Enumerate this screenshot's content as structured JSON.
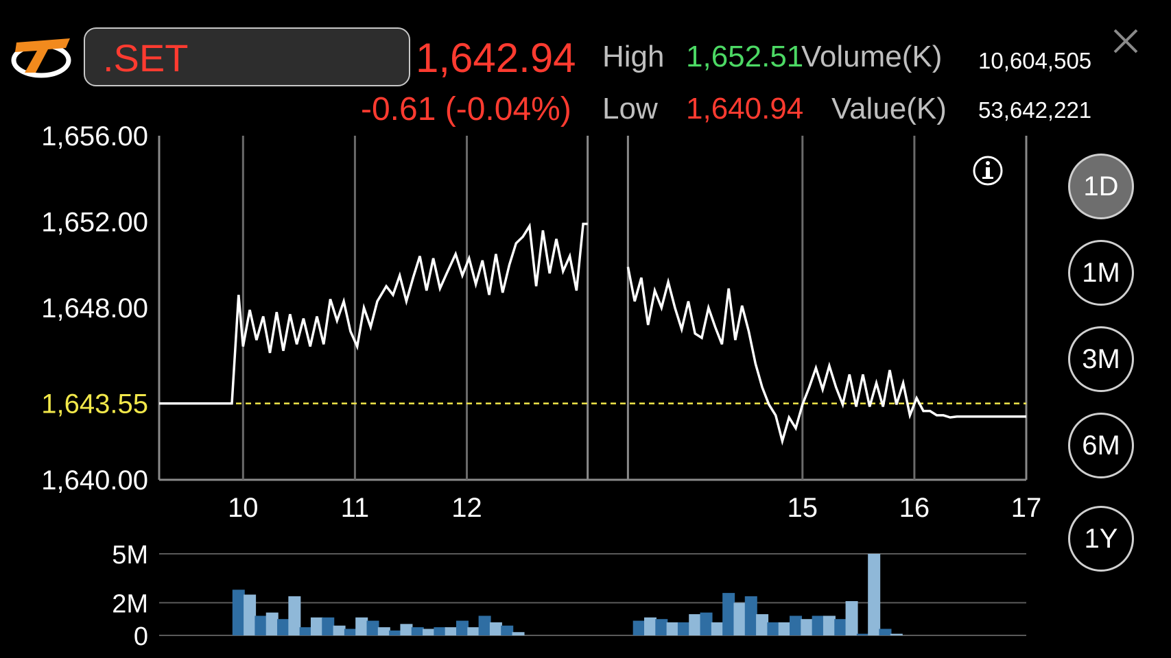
{
  "header": {
    "symbol": ".SET",
    "last_price": "1,642.94",
    "change": "-0.61 (-0.04%)",
    "high_label": "High",
    "high_value": "1,652.51",
    "low_label": "Low",
    "low_value": "1,640.94",
    "volume_label": "Volume(K)",
    "volume_value": "10,604,505",
    "value_label": "Value(K)",
    "value_value": "53,642,221"
  },
  "periods": [
    {
      "label": "1D",
      "active": true
    },
    {
      "label": "1M",
      "active": false
    },
    {
      "label": "3M",
      "active": false
    },
    {
      "label": "6M",
      "active": false
    },
    {
      "label": "1Y",
      "active": false
    }
  ],
  "colors": {
    "price_line": "#ffffff",
    "reference_line": "#f2e84a",
    "volume_bar_dark": "#2f6ea3",
    "volume_bar_light": "#8fb8d8",
    "down": "#ff3b30",
    "up": "#4cd964"
  },
  "icons": {
    "logo": "settrade-logo",
    "close": "close-icon",
    "info": "info-icon"
  },
  "chart_data": {
    "type": "line",
    "y_ticks": [
      "1,656.00",
      "1,652.00",
      "1,648.00",
      "1,640.00"
    ],
    "y_tick_values": [
      1656,
      1652,
      1648,
      1640
    ],
    "ylim": [
      1640,
      1656
    ],
    "reference_label": "1,643.55",
    "reference_value": 1643.55,
    "x_ticks": [
      "10",
      "11",
      "12",
      "15",
      "16",
      "17"
    ],
    "x_tick_values": [
      10,
      11,
      12,
      15,
      16,
      17
    ],
    "xlim": [
      9.25,
      17
    ],
    "morning_session": [
      [
        9.25,
        1643.55
      ],
      [
        9.9,
        1643.55
      ],
      [
        9.96,
        1648.6
      ],
      [
        10.0,
        1646.2
      ],
      [
        10.06,
        1647.9
      ],
      [
        10.12,
        1646.5
      ],
      [
        10.18,
        1647.6
      ],
      [
        10.24,
        1645.9
      ],
      [
        10.3,
        1647.8
      ],
      [
        10.36,
        1646.0
      ],
      [
        10.42,
        1647.7
      ],
      [
        10.48,
        1646.3
      ],
      [
        10.54,
        1647.5
      ],
      [
        10.6,
        1646.2
      ],
      [
        10.66,
        1647.6
      ],
      [
        10.72,
        1646.3
      ],
      [
        10.78,
        1648.4
      ],
      [
        10.84,
        1647.4
      ],
      [
        10.9,
        1648.3
      ],
      [
        10.96,
        1646.9
      ],
      [
        11.02,
        1646.2
      ],
      [
        11.08,
        1648.0
      ],
      [
        11.14,
        1647.1
      ],
      [
        11.2,
        1648.3
      ],
      [
        11.28,
        1649.0
      ],
      [
        11.34,
        1648.6
      ],
      [
        11.4,
        1649.5
      ],
      [
        11.46,
        1648.3
      ],
      [
        11.52,
        1649.4
      ],
      [
        11.58,
        1650.4
      ],
      [
        11.64,
        1648.8
      ],
      [
        11.7,
        1650.3
      ],
      [
        11.76,
        1648.9
      ],
      [
        11.82,
        1649.6
      ],
      [
        11.9,
        1650.5
      ],
      [
        11.96,
        1649.5
      ],
      [
        12.02,
        1650.3
      ],
      [
        12.08,
        1649.1
      ],
      [
        12.14,
        1650.2
      ],
      [
        12.2,
        1648.6
      ],
      [
        12.26,
        1650.5
      ],
      [
        12.32,
        1648.7
      ],
      [
        12.38,
        1650.0
      ],
      [
        12.44,
        1651.0
      ],
      [
        12.5,
        1651.3
      ],
      [
        12.56,
        1651.8
      ],
      [
        12.62,
        1649.0
      ],
      [
        12.68,
        1651.6
      ],
      [
        12.74,
        1649.6
      ],
      [
        12.8,
        1651.2
      ],
      [
        12.86,
        1649.7
      ],
      [
        12.92,
        1650.4
      ],
      [
        12.98,
        1648.8
      ],
      [
        13.04,
        1651.9
      ],
      [
        13.08,
        1651.9
      ]
    ],
    "afternoon_session": [
      [
        13.44,
        1649.9
      ],
      [
        13.5,
        1648.3
      ],
      [
        13.56,
        1649.4
      ],
      [
        13.62,
        1647.2
      ],
      [
        13.68,
        1648.8
      ],
      [
        13.74,
        1648.0
      ],
      [
        13.8,
        1649.2
      ],
      [
        13.86,
        1648.0
      ],
      [
        13.92,
        1647.0
      ],
      [
        13.98,
        1648.3
      ],
      [
        14.04,
        1646.8
      ],
      [
        14.1,
        1646.6
      ],
      [
        14.16,
        1648.0
      ],
      [
        14.22,
        1647.1
      ],
      [
        14.28,
        1646.3
      ],
      [
        14.34,
        1648.9
      ],
      [
        14.4,
        1646.5
      ],
      [
        14.46,
        1648.1
      ],
      [
        14.52,
        1646.9
      ],
      [
        14.58,
        1645.4
      ],
      [
        14.64,
        1644.3
      ],
      [
        14.7,
        1643.5
      ],
      [
        14.76,
        1643.0
      ],
      [
        14.82,
        1641.8
      ],
      [
        14.88,
        1642.9
      ],
      [
        14.94,
        1642.4
      ],
      [
        15.0,
        1643.5
      ],
      [
        15.06,
        1644.3
      ],
      [
        15.12,
        1645.2
      ],
      [
        15.18,
        1644.2
      ],
      [
        15.24,
        1645.3
      ],
      [
        15.3,
        1644.3
      ],
      [
        15.36,
        1643.5
      ],
      [
        15.42,
        1644.9
      ],
      [
        15.48,
        1643.4
      ],
      [
        15.54,
        1644.9
      ],
      [
        15.6,
        1643.4
      ],
      [
        15.66,
        1644.5
      ],
      [
        15.72,
        1643.4
      ],
      [
        15.78,
        1645.1
      ],
      [
        15.84,
        1643.5
      ],
      [
        15.9,
        1644.5
      ],
      [
        15.96,
        1643.0
      ],
      [
        16.02,
        1643.8
      ],
      [
        16.08,
        1643.2
      ],
      [
        16.14,
        1643.2
      ],
      [
        16.2,
        1643.0
      ],
      [
        16.26,
        1643.0
      ],
      [
        16.32,
        1642.9
      ],
      [
        16.38,
        1642.94
      ],
      [
        17.0,
        1642.94
      ]
    ],
    "volume": {
      "y_ticks": [
        "5M",
        "2M",
        "0"
      ],
      "y_tick_values": [
        5,
        2,
        0
      ],
      "ylim": [
        0,
        5
      ],
      "bars": [
        [
          9.96,
          2.8
        ],
        [
          10.06,
          2.5
        ],
        [
          10.16,
          1.2
        ],
        [
          10.26,
          1.4
        ],
        [
          10.36,
          1.0
        ],
        [
          10.46,
          2.4
        ],
        [
          10.56,
          0.5
        ],
        [
          10.66,
          1.1
        ],
        [
          10.76,
          1.1
        ],
        [
          10.86,
          0.6
        ],
        [
          10.96,
          0.4
        ],
        [
          11.06,
          1.1
        ],
        [
          11.16,
          0.9
        ],
        [
          11.26,
          0.5
        ],
        [
          11.36,
          0.3
        ],
        [
          11.46,
          0.7
        ],
        [
          11.56,
          0.5
        ],
        [
          11.66,
          0.4
        ],
        [
          11.76,
          0.5
        ],
        [
          11.86,
          0.5
        ],
        [
          11.96,
          0.9
        ],
        [
          12.06,
          0.5
        ],
        [
          12.16,
          1.2
        ],
        [
          12.26,
          0.8
        ],
        [
          12.36,
          0.6
        ],
        [
          12.46,
          0.2
        ],
        [
          13.54,
          0.9
        ],
        [
          13.64,
          1.1
        ],
        [
          13.74,
          1.0
        ],
        [
          13.84,
          0.8
        ],
        [
          13.94,
          0.8
        ],
        [
          14.04,
          1.3
        ],
        [
          14.14,
          1.4
        ],
        [
          14.24,
          0.8
        ],
        [
          14.34,
          2.6
        ],
        [
          14.44,
          2.0
        ],
        [
          14.54,
          2.4
        ],
        [
          14.64,
          1.3
        ],
        [
          14.74,
          0.8
        ],
        [
          14.84,
          0.8
        ],
        [
          14.94,
          1.2
        ],
        [
          15.04,
          1.0
        ],
        [
          15.14,
          1.2
        ],
        [
          15.24,
          1.2
        ],
        [
          15.34,
          1.0
        ],
        [
          15.44,
          2.1
        ],
        [
          15.54,
          0.1
        ],
        [
          15.64,
          5.3
        ],
        [
          15.74,
          0.4
        ],
        [
          15.84,
          0.1
        ]
      ]
    }
  }
}
